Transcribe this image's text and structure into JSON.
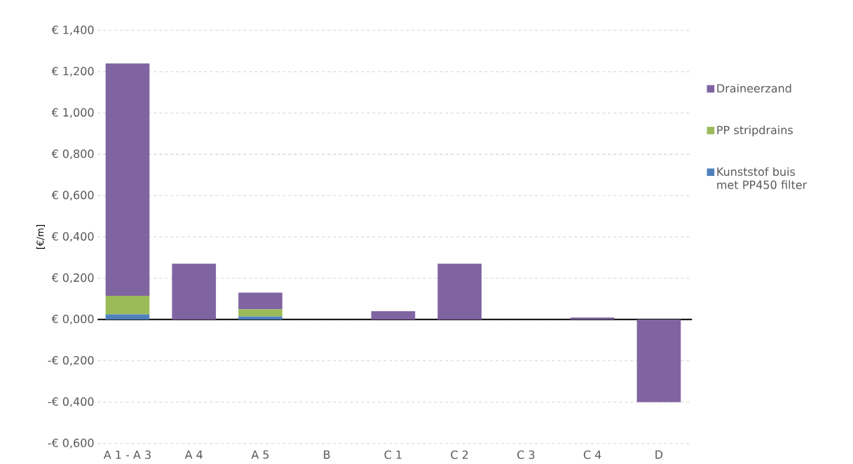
{
  "chart_data": {
    "type": "bar",
    "stacked": true,
    "ylabel": "[€/m]",
    "categories": [
      "A 1 - A 3",
      "A 4",
      "A 5",
      "B",
      "C 1",
      "C 2",
      "C 3",
      "C 4",
      "D"
    ],
    "series": [
      {
        "name": "Kunststof buis met PP450 filter",
        "color": "#4f81bd",
        "values": [
          0.025,
          0,
          0.015,
          0,
          0,
          0,
          0,
          0,
          0
        ]
      },
      {
        "name": "PP stripdrains",
        "color": "#9bbb59",
        "values": [
          0.09,
          0,
          0.035,
          0,
          0,
          0,
          0,
          0,
          0
        ]
      },
      {
        "name": "Draineerzand",
        "color": "#8064a2",
        "values": [
          1.125,
          0.27,
          0.08,
          0,
          0.04,
          0.27,
          0,
          0.01,
          -0.4
        ]
      }
    ],
    "ylim": [
      -0.6,
      1.4
    ],
    "yticks": [
      {
        "value": -0.6,
        "label": "-€ 0,600"
      },
      {
        "value": -0.4,
        "label": "-€ 0,400"
      },
      {
        "value": -0.2,
        "label": "-€ 0,200"
      },
      {
        "value": 0,
        "label": "€ 0,000"
      },
      {
        "value": 0.2,
        "label": "€ 0,200"
      },
      {
        "value": 0.4,
        "label": "€ 0,400"
      },
      {
        "value": 0.6,
        "label": "€ 0,600"
      },
      {
        "value": 0.8,
        "label": "€ 0,800"
      },
      {
        "value": 1.0,
        "label": "€ 1,000"
      },
      {
        "value": 1.2,
        "label": "€ 1,200"
      },
      {
        "value": 1.4,
        "label": "€ 1,400"
      }
    ],
    "grid": "y",
    "legend": "right"
  }
}
